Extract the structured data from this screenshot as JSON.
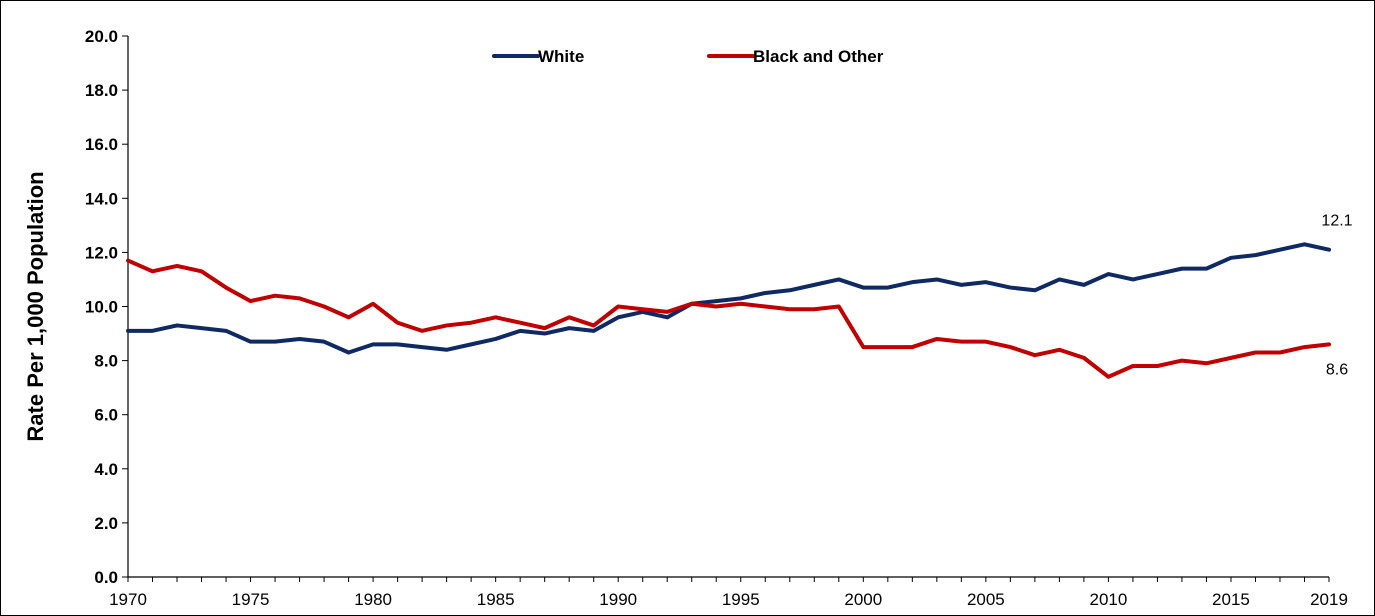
{
  "chart_data": {
    "type": "line",
    "title": "",
    "xlabel": "",
    "ylabel": "Rate Per 1,000 Population",
    "xlim": [
      1970,
      2019
    ],
    "ylim": [
      0,
      20
    ],
    "yticks": [
      "0.0",
      "2.0",
      "4.0",
      "6.0",
      "8.0",
      "10.0",
      "12.0",
      "14.0",
      "16.0",
      "18.0",
      "20.0"
    ],
    "xticks": [
      "1970",
      "1975",
      "1980",
      "1985",
      "1990",
      "1995",
      "2000",
      "2005",
      "2010",
      "2015",
      "2019"
    ],
    "grid": false,
    "legend": "top-center",
    "x": [
      1970,
      1971,
      1972,
      1973,
      1974,
      1975,
      1976,
      1977,
      1978,
      1979,
      1980,
      1981,
      1982,
      1983,
      1984,
      1985,
      1986,
      1987,
      1988,
      1989,
      1990,
      1991,
      1992,
      1993,
      1994,
      1995,
      1996,
      1997,
      1998,
      1999,
      2000,
      2001,
      2002,
      2003,
      2004,
      2005,
      2006,
      2007,
      2008,
      2009,
      2010,
      2011,
      2012,
      2013,
      2014,
      2015,
      2016,
      2017,
      2018,
      2019
    ],
    "series": [
      {
        "name": "White",
        "color": "#0f2a63",
        "end_label": "12.1",
        "values": [
          9.1,
          9.1,
          9.3,
          9.2,
          9.1,
          8.7,
          8.7,
          8.8,
          8.7,
          8.3,
          8.6,
          8.6,
          8.5,
          8.4,
          8.6,
          8.8,
          9.1,
          9.0,
          9.2,
          9.1,
          9.6,
          9.8,
          9.6,
          10.1,
          10.2,
          10.3,
          10.5,
          10.6,
          10.8,
          11.0,
          10.7,
          10.7,
          10.9,
          11.0,
          10.8,
          10.9,
          10.7,
          10.6,
          11.0,
          10.8,
          11.2,
          11.0,
          11.2,
          11.4,
          11.4,
          11.8,
          11.9,
          12.1,
          12.3,
          12.1
        ]
      },
      {
        "name": "Black and Other",
        "color": "#c00000",
        "end_label": "8.6",
        "values": [
          11.7,
          11.3,
          11.5,
          11.3,
          10.7,
          10.2,
          10.4,
          10.3,
          10.0,
          9.6,
          10.1,
          9.4,
          9.1,
          9.3,
          9.4,
          9.6,
          9.4,
          9.2,
          9.6,
          9.3,
          10.0,
          9.9,
          9.8,
          10.1,
          10.0,
          10.1,
          10.0,
          9.9,
          9.9,
          10.0,
          8.5,
          8.5,
          8.5,
          8.8,
          8.7,
          8.7,
          8.5,
          8.2,
          8.4,
          8.1,
          7.4,
          7.8,
          7.8,
          8.0,
          7.9,
          8.1,
          8.3,
          8.3,
          8.5,
          8.6
        ]
      }
    ]
  }
}
